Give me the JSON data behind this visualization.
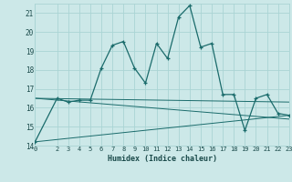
{
  "xlabel": "Humidex (Indice chaleur)",
  "background_color": "#cce8e8",
  "grid_color": "#aad4d4",
  "line_color": "#1a6b6b",
  "xlim": [
    0,
    23
  ],
  "ylim": [
    14,
    21.5
  ],
  "yticks": [
    14,
    15,
    16,
    17,
    18,
    19,
    20,
    21
  ],
  "xticks": [
    0,
    2,
    3,
    4,
    5,
    6,
    7,
    8,
    9,
    10,
    11,
    12,
    13,
    14,
    15,
    16,
    17,
    18,
    19,
    20,
    21,
    22,
    23
  ],
  "series1_x": [
    0,
    2,
    3,
    4,
    5,
    6,
    7,
    8,
    9,
    10,
    11,
    12,
    13,
    14,
    15,
    16,
    17,
    18,
    19,
    20,
    21,
    22,
    23
  ],
  "series1_y": [
    14.2,
    16.5,
    16.3,
    16.4,
    16.4,
    18.1,
    19.3,
    19.5,
    18.1,
    17.3,
    19.4,
    18.6,
    20.8,
    21.4,
    19.2,
    19.4,
    16.7,
    16.7,
    14.8,
    16.5,
    16.7,
    15.7,
    15.6
  ],
  "series2_x": [
    0,
    23
  ],
  "series2_y": [
    14.2,
    15.6
  ],
  "series3_x": [
    0,
    23
  ],
  "series3_y": [
    16.5,
    16.3
  ],
  "series4_x": [
    0,
    23
  ],
  "series4_y": [
    16.5,
    15.4
  ]
}
